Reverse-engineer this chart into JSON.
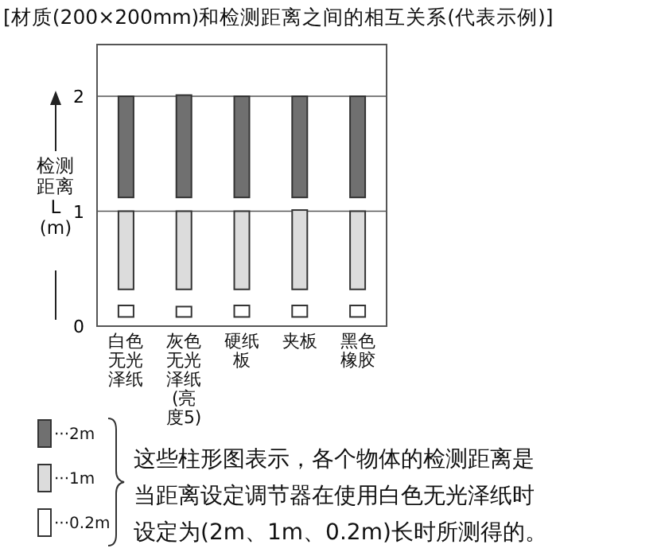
{
  "chart_data": {
    "type": "bar",
    "title": "[材质(200×200mm)和检测距离之间的相互关系(代表示例)]",
    "ylabel": "检测距离L (m)",
    "categories": [
      "白色无光泽纸",
      "灰色无光泽纸(亮度5)",
      "硬纸板",
      "夹板",
      "黑色橡胶"
    ],
    "series": [
      {
        "name": "···2m",
        "color": "#707070",
        "base": [
          1.12,
          1.12,
          1.12,
          1.12,
          1.12
        ],
        "values": [
          0.88,
          0.89,
          0.88,
          0.88,
          0.88
        ]
      },
      {
        "name": "···1m",
        "color": "#dcdcdc",
        "base": [
          0.32,
          0.32,
          0.32,
          0.32,
          0.32
        ],
        "values": [
          0.68,
          0.68,
          0.68,
          0.69,
          0.68
        ]
      },
      {
        "name": "···0.2m",
        "color": "#ffffff",
        "base": [
          0.08,
          0.08,
          0.08,
          0.08,
          0.08
        ],
        "values": [
          0.1,
          0.09,
          0.1,
          0.1,
          0.1
        ]
      }
    ],
    "ylim": [
      0,
      2.45
    ],
    "yticks": [
      0,
      1,
      2
    ],
    "grid": "y",
    "legend": "bottom left",
    "annotations": [
      "这些柱形图表示，各个物体的检测距离是当距离设定调节器在使用白色无光泽纸时设定为(2m、1m、0.2m)长时所测得的。"
    ]
  }
}
